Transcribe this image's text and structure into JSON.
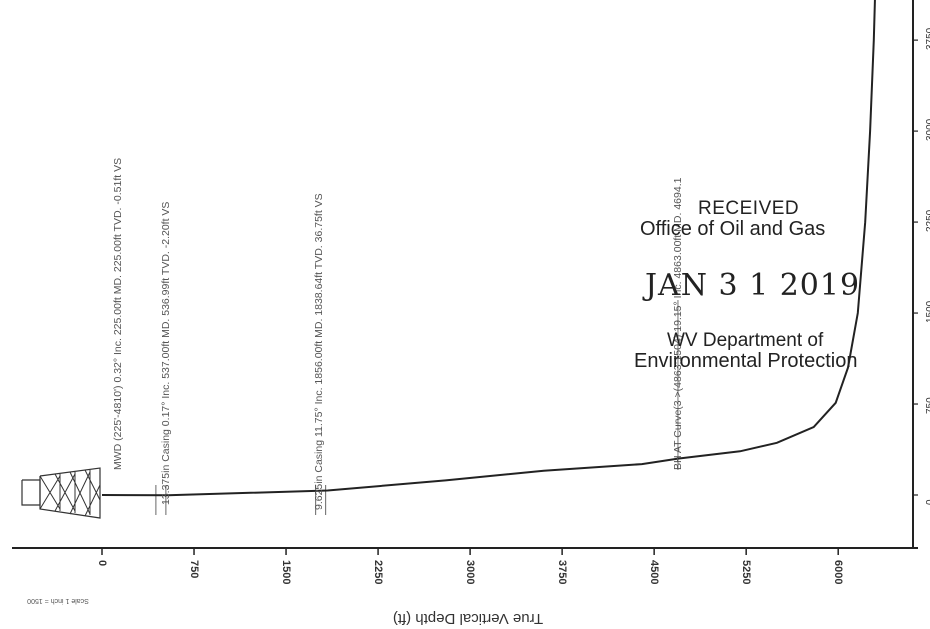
{
  "chart_data": {
    "type": "line",
    "xlabel": "True Vertical Depth (ft)",
    "scale_note": "Scale 1 inch = 1500",
    "x_ticks": [
      "0",
      "750",
      "1500",
      "2250",
      "3000",
      "3750",
      "4500",
      "5250",
      "6000"
    ],
    "y_ticks": [
      "0",
      "750",
      "1500",
      "2250",
      "3000",
      "3750"
    ],
    "series": [
      {
        "points_tvd_vs": [
          [
            0,
            0
          ],
          [
            225,
            -0.51
          ],
          [
            537,
            -2.2
          ],
          [
            1839,
            36.75
          ],
          [
            2800,
            120
          ],
          [
            3600,
            200
          ],
          [
            4400,
            255
          ],
          [
            4694,
            300
          ],
          [
            5200,
            360
          ],
          [
            5500,
            430
          ],
          [
            5800,
            560
          ],
          [
            5980,
            760
          ],
          [
            6080,
            1050
          ],
          [
            6160,
            1500
          ],
          [
            6220,
            2250
          ],
          [
            6260,
            3000
          ],
          [
            6290,
            3750
          ],
          [
            6300,
            4100
          ]
        ]
      }
    ],
    "annotations": [
      {
        "text": "MWD (225'-4810')   0.32° Inc. 225.00ft MD. 225.00ft TVD. -0.51ft VS",
        "tvd": 120,
        "vs": 480
      },
      {
        "text": "13.375in Casing   0.17° Inc. 537.00ft MD. 536.99ft TVD. -2.20ft VS",
        "tvd": 537,
        "vs": 40
      },
      {
        "text": "9.625in Casing   11.75° Inc. 1856.00ft MD. 1838.64ft TVD. 36.75ft VS",
        "tvd": 1839,
        "vs": 80
      },
      {
        "text": "BH AT Curve(3 >(4863:1504) 19.15° Inc. 4863.00ft MD. 4694.1",
        "tvd": 4694,
        "vs": 320
      }
    ],
    "stamp": {
      "received": "RECEIVED",
      "office": "Office of Oil and Gas",
      "date": "JAN 3 1 2019",
      "dept1": "WV Department of",
      "dept2": "Environmental Protection"
    }
  }
}
